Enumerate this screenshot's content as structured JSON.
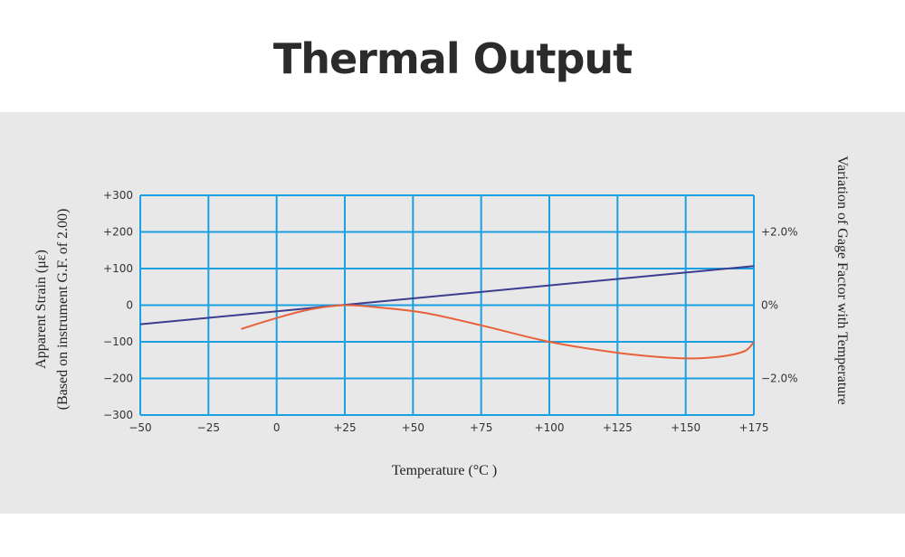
{
  "page": {
    "title": "Thermal Output"
  },
  "chart_data": {
    "type": "line",
    "title": "Thermal Output",
    "xlabel": "Temperature (°C )",
    "ylabel": "Apparent Strain (μɛ)",
    "ylabel_sub": "(Based on instrument G.F. of 2.00)",
    "y2label": "Variation of Gage Factor with Temperature",
    "xlim": [
      -50,
      175
    ],
    "ylim": [
      -300,
      300
    ],
    "y2lim": [
      -3.0,
      3.0
    ],
    "x_ticks": [
      -50,
      -25,
      0,
      25,
      50,
      75,
      100,
      125,
      150,
      175
    ],
    "x_tick_labels": [
      "−50",
      "−25",
      "0",
      "+25",
      "+50",
      "+75",
      "+100",
      "+125",
      "+150",
      "+175"
    ],
    "y_ticks": [
      300,
      200,
      100,
      0,
      -100,
      -200,
      -300
    ],
    "y_tick_labels": [
      "+300",
      "+200",
      "+100",
      "0",
      "−100",
      "−200",
      "−300"
    ],
    "y2_ticks": [
      2.0,
      0,
      -2.0
    ],
    "y2_tick_labels": [
      "+2.0%",
      "0%",
      "−2.0%"
    ],
    "grid": true,
    "series": [
      {
        "axis": "right",
        "color": "#3d3d8f",
        "x": [
          -50,
          175
        ],
        "y": [
          -0.52,
          1.07
        ]
      },
      {
        "axis": "left",
        "color": "#e8613a",
        "x": [
          -13,
          0,
          12,
          25,
          40,
          55,
          75,
          100,
          125,
          145,
          155,
          165,
          172,
          175
        ],
        "y": [
          -65,
          -35,
          -12,
          0,
          -8,
          -22,
          -55,
          -100,
          -130,
          -144,
          -145,
          -138,
          -124,
          -100
        ]
      }
    ]
  }
}
